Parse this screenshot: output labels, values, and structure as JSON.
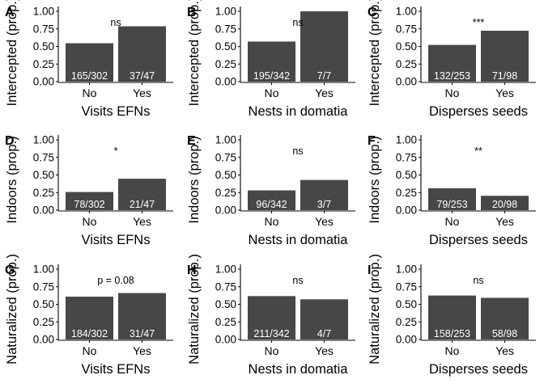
{
  "chart_data": [
    {
      "panel_label": "A",
      "type": "bar",
      "categories": [
        "No",
        "Yes"
      ],
      "values": [
        0.546,
        0.787
      ],
      "bar_labels": [
        "165/302",
        "37/47"
      ],
      "xlabel": "Visits EFNs",
      "ylabel": "Intercepted (prop.)",
      "annotation": "ns",
      "ylim": [
        0,
        1
      ],
      "yticks": [
        "0.00",
        "0.25",
        "0.50",
        "0.75",
        "1.00"
      ],
      "grid": false
    },
    {
      "panel_label": "B",
      "type": "bar",
      "categories": [
        "No",
        "Yes"
      ],
      "values": [
        0.57,
        1.0
      ],
      "bar_labels": [
        "195/342",
        "7/7"
      ],
      "xlabel": "Nests in domatia",
      "ylabel": "Intercepted (prop.)",
      "annotation": "ns",
      "ylim": [
        0,
        1
      ],
      "yticks": [
        "0.00",
        "0.25",
        "0.50",
        "0.75",
        "1.00"
      ],
      "grid": false
    },
    {
      "panel_label": "C",
      "type": "bar",
      "categories": [
        "No",
        "Yes"
      ],
      "values": [
        0.522,
        0.724
      ],
      "bar_labels": [
        "132/253",
        "71/98"
      ],
      "xlabel": "Disperses seeds",
      "ylabel": "Intercepted (prop.)",
      "annotation": "***",
      "ylim": [
        0,
        1
      ],
      "yticks": [
        "0.00",
        "0.25",
        "0.50",
        "0.75",
        "1.00"
      ],
      "grid": false
    },
    {
      "panel_label": "D",
      "type": "bar",
      "categories": [
        "No",
        "Yes"
      ],
      "values": [
        0.258,
        0.447
      ],
      "bar_labels": [
        "78/302",
        "21/47"
      ],
      "xlabel": "Visits EFNs",
      "ylabel": "Indoors (prop.)",
      "annotation": "*",
      "ylim": [
        0,
        1
      ],
      "yticks": [
        "0.00",
        "0.25",
        "0.50",
        "0.75",
        "1.00"
      ],
      "grid": false
    },
    {
      "panel_label": "E",
      "type": "bar",
      "categories": [
        "No",
        "Yes"
      ],
      "values": [
        0.281,
        0.429
      ],
      "bar_labels": [
        "96/342",
        "3/7"
      ],
      "xlabel": "Nests in domatia",
      "ylabel": "Indoors (prop.)",
      "annotation": "ns",
      "ylim": [
        0,
        1
      ],
      "yticks": [
        "0.00",
        "0.25",
        "0.50",
        "0.75",
        "1.00"
      ],
      "grid": false
    },
    {
      "panel_label": "F",
      "type": "bar",
      "categories": [
        "No",
        "Yes"
      ],
      "values": [
        0.312,
        0.204
      ],
      "bar_labels": [
        "79/253",
        "20/98"
      ],
      "xlabel": "Disperses seeds",
      "ylabel": "Indoors (prop.)",
      "annotation": "**",
      "ylim": [
        0,
        1
      ],
      "yticks": [
        "0.00",
        "0.25",
        "0.50",
        "0.75",
        "1.00"
      ],
      "grid": false
    },
    {
      "panel_label": "G",
      "type": "bar",
      "categories": [
        "No",
        "Yes"
      ],
      "values": [
        0.609,
        0.66
      ],
      "bar_labels": [
        "184/302",
        "31/47"
      ],
      "xlabel": "Visits EFNs",
      "ylabel": "Naturalized (prop.)",
      "annotation": "p = 0.08",
      "ylim": [
        0,
        1
      ],
      "yticks": [
        "0.00",
        "0.25",
        "0.50",
        "0.75",
        "1.00"
      ],
      "grid": false
    },
    {
      "panel_label": "H",
      "type": "bar",
      "categories": [
        "No",
        "Yes"
      ],
      "values": [
        0.617,
        0.571
      ],
      "bar_labels": [
        "211/342",
        "4/7"
      ],
      "xlabel": "Nests in domatia",
      "ylabel": "Naturalized (prop.)",
      "annotation": "ns",
      "ylim": [
        0,
        1
      ],
      "yticks": [
        "0.00",
        "0.25",
        "0.50",
        "0.75",
        "1.00"
      ],
      "grid": false
    },
    {
      "panel_label": "I",
      "type": "bar",
      "categories": [
        "No",
        "Yes"
      ],
      "values": [
        0.625,
        0.592
      ],
      "bar_labels": [
        "158/253",
        "58/98"
      ],
      "xlabel": "Disperses seeds",
      "ylabel": "Naturalized (prop.)",
      "annotation": "ns",
      "ylim": [
        0,
        1
      ],
      "yticks": [
        "0.00",
        "0.25",
        "0.50",
        "0.75",
        "1.00"
      ],
      "grid": false
    }
  ],
  "colors": {
    "bar": "#474747",
    "bar_label": "#ffffff",
    "axis": "#000000",
    "background": "#ffffff"
  }
}
